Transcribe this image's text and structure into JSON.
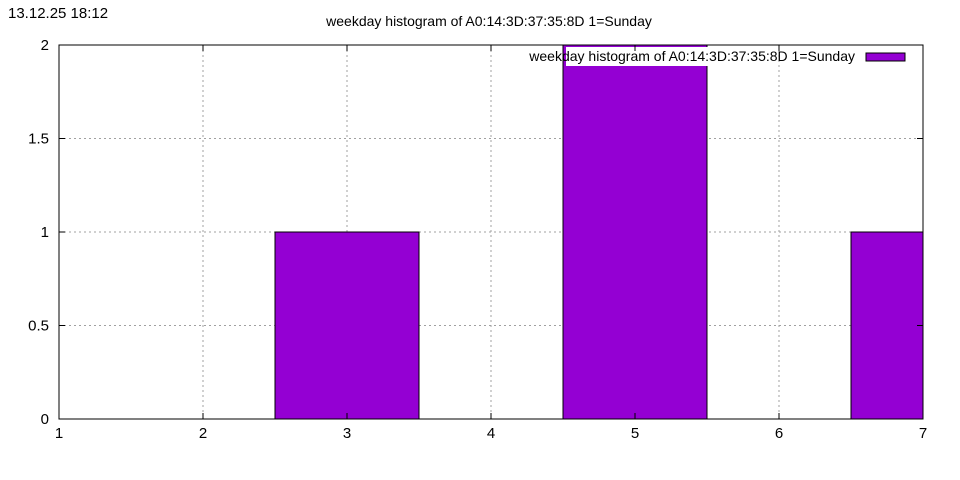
{
  "timestamp": "13.12.25 18:12",
  "chart_data": {
    "type": "bar",
    "title": "weekday histogram of A0:14:3D:37:35:8D 1=Sunday",
    "x": [
      3,
      5,
      7
    ],
    "values": [
      1,
      2,
      1
    ],
    "bar_width": 1,
    "xlim": [
      1,
      7
    ],
    "ylim": [
      0,
      2
    ],
    "xticks": [
      1,
      2,
      3,
      4,
      5,
      6,
      7
    ],
    "yticks": [
      0,
      0.5,
      1,
      1.5,
      2
    ],
    "xtick_labels": [
      "1",
      "2",
      "3",
      "4",
      "5",
      "6",
      "7"
    ],
    "ytick_labels": [
      "0",
      "0.5",
      "1",
      "1.5",
      "2"
    ],
    "grid": true,
    "legend": {
      "position": "top-right",
      "entries": [
        {
          "name": "weekday histogram of A0:14:3D:37:35:8D 1=Sunday",
          "color": "#9400d3"
        }
      ]
    },
    "series": [
      {
        "name": "weekday histogram of A0:14:3D:37:35:8D 1=Sunday",
        "color": "#9400d3",
        "values": [
          1,
          2,
          1
        ]
      }
    ]
  }
}
